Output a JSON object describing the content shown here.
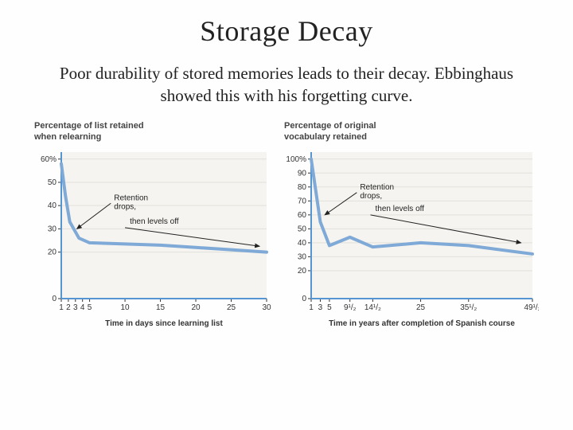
{
  "title": "Storage Decay",
  "body": "Poor durability of stored memories leads to their decay. Ebbinghaus showed this with his forgetting curve.",
  "chart_left": {
    "type": "line",
    "panel_title": "Percentage of list retained\nwhen relearning",
    "xlabel": "Time in days since learning list",
    "x_ticks": [
      1,
      2,
      3,
      4,
      5,
      10,
      15,
      20,
      25,
      30
    ],
    "x_positions": [
      0,
      1,
      2,
      3,
      4,
      9,
      14,
      19,
      24,
      29
    ],
    "x_domain": [
      0,
      29
    ],
    "y_ticks": [
      0,
      20,
      30,
      40,
      50,
      "60%"
    ],
    "y_tick_vals": [
      0,
      20,
      30,
      40,
      50,
      60
    ],
    "y_domain": [
      0,
      63
    ],
    "series": {
      "x": [
        0,
        0.6,
        1.2,
        2.5,
        4,
        9,
        14,
        19,
        24,
        29
      ],
      "y": [
        58,
        44,
        33,
        26,
        24,
        23.5,
        23,
        22,
        21,
        20
      ]
    },
    "line_color": "#7fa9d6",
    "line_width": 4,
    "bg_color": "#f5f4f0",
    "axis_color": "#5596d2",
    "grid_color": "#e2e0d9",
    "tick_fontsize": 10,
    "label_fontsize": 10,
    "annotations": {
      "retention": {
        "text": "Retention\ndrops,",
        "arrow_from": [
          7,
          41
        ],
        "arrow_to": [
          2.2,
          30
        ]
      },
      "levels": {
        "text": "then levels off",
        "arrow_from": [
          9,
          30.5
        ],
        "arrow_to": [
          28,
          22.5
        ]
      }
    }
  },
  "chart_right": {
    "type": "line",
    "panel_title": "Percentage of original\nvocabulary retained",
    "xlabel": "Time in years after completion of Spanish course",
    "x_tick_labels": [
      "1",
      "3",
      "5",
      "9¹/₂",
      "14¹/₂",
      "25",
      "35¹/₂",
      "49¹/₂"
    ],
    "x_tick_positions": [
      0,
      2,
      4,
      8.5,
      13.5,
      24,
      34.5,
      48.5
    ],
    "x_domain": [
      0,
      48.5
    ],
    "y_ticks": [
      0,
      20,
      30,
      40,
      50,
      60,
      70,
      80,
      90,
      "100%"
    ],
    "y_tick_vals": [
      0,
      20,
      30,
      40,
      50,
      60,
      70,
      80,
      90,
      100
    ],
    "y_domain": [
      0,
      105
    ],
    "series": {
      "x": [
        0,
        2,
        4,
        8.5,
        13.5,
        24,
        34.5,
        48.5
      ],
      "y": [
        100,
        55,
        38,
        44,
        37,
        40,
        38,
        32
      ]
    },
    "line_color": "#7fa9d6",
    "line_width": 4,
    "bg_color": "#f5f4f0",
    "axis_color": "#5596d2",
    "grid_color": "#e2e0d9",
    "tick_fontsize": 10,
    "label_fontsize": 10,
    "annotations": {
      "retention": {
        "text": "Retention\ndrops,",
        "arrow_from": [
          10,
          76
        ],
        "arrow_to": [
          3,
          60
        ]
      },
      "levels": {
        "text": "then levels off",
        "arrow_from": [
          13,
          60
        ],
        "arrow_to": [
          46,
          40
        ]
      }
    }
  }
}
